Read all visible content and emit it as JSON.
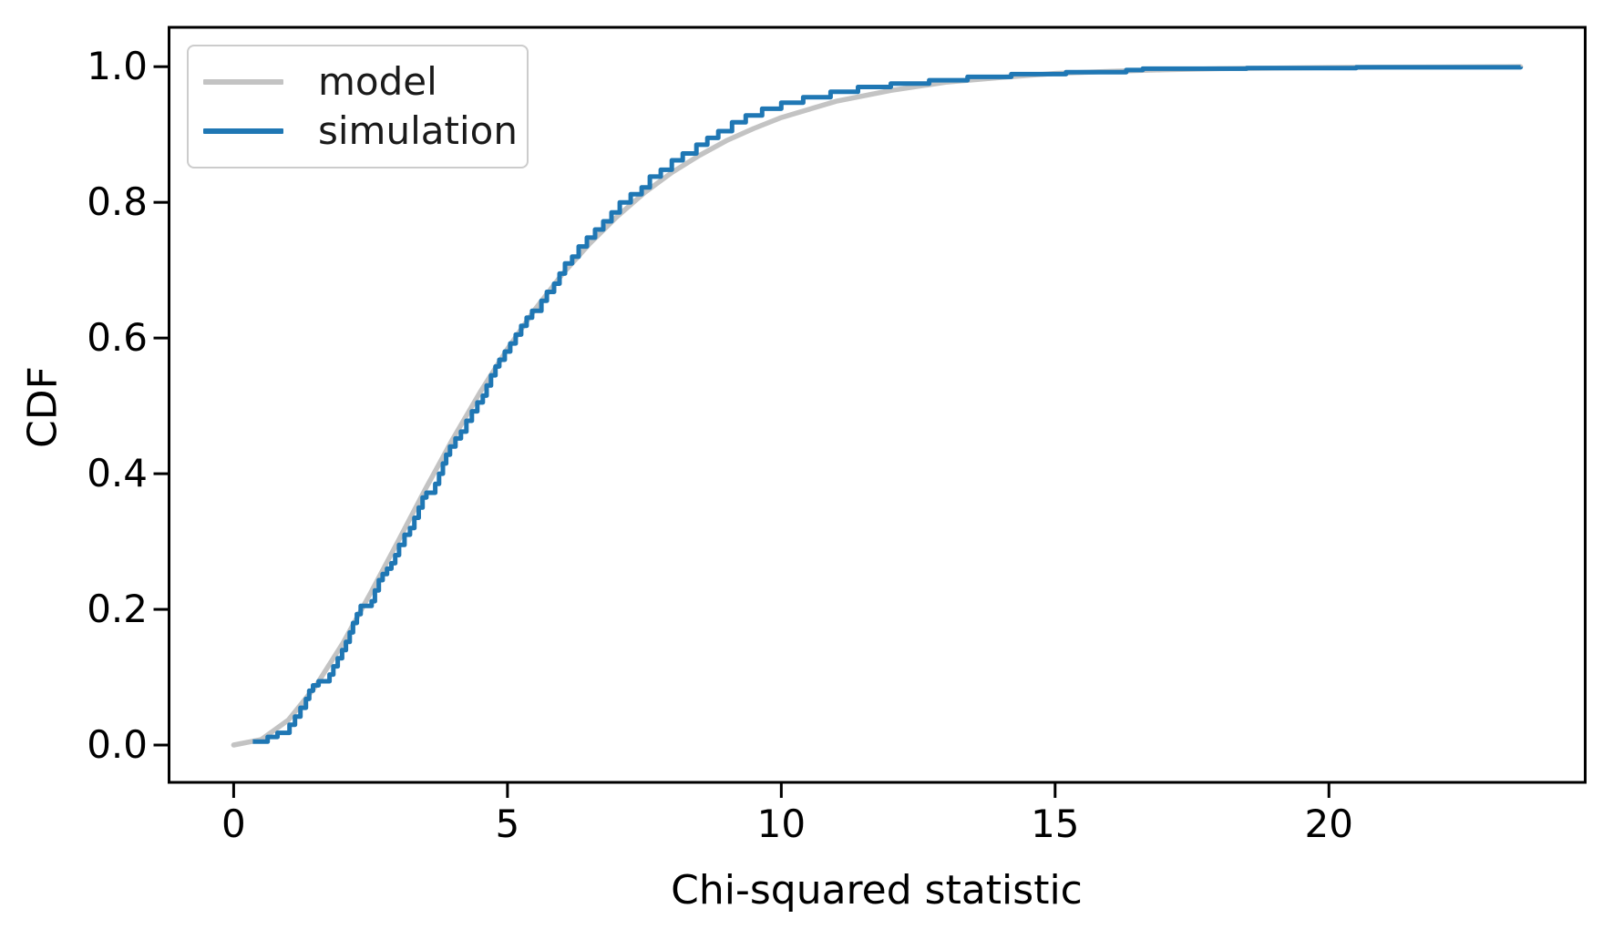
{
  "chart_data": {
    "type": "line",
    "title": "",
    "xlabel": "Chi-squared statistic",
    "ylabel": "CDF",
    "xlim": [
      -1.18,
      24.68
    ],
    "ylim": [
      -0.055,
      1.058
    ],
    "x_ticks": [
      0,
      5,
      10,
      15,
      20
    ],
    "x_tick_labels": [
      "0",
      "5",
      "10",
      "15",
      "20"
    ],
    "y_ticks": [
      0.0,
      0.2,
      0.4,
      0.6,
      0.8,
      1.0
    ],
    "y_tick_labels": [
      "0.0",
      "0.2",
      "0.4",
      "0.6",
      "0.8",
      "1.0"
    ],
    "grid": false,
    "legend": {
      "position": "upper-left",
      "entries": [
        {
          "label": "model",
          "color": "#c3c3c3"
        },
        {
          "label": "simulation",
          "color": "#1f77b4"
        }
      ]
    },
    "series": [
      {
        "name": "model",
        "style": "smooth",
        "color": "#c3c3c3",
        "width": 5.5,
        "x": [
          0,
          0.5,
          1,
          1.5,
          2,
          2.5,
          3,
          3.5,
          4,
          4.5,
          5,
          5.5,
          6,
          6.5,
          7,
          7.5,
          8,
          8.5,
          9,
          9.5,
          10,
          11,
          12,
          13,
          14,
          15,
          16,
          17,
          18,
          19,
          20,
          21,
          22,
          23,
          23.5
        ],
        "y": [
          0,
          0.008,
          0.037,
          0.087,
          0.151,
          0.224,
          0.3,
          0.377,
          0.451,
          0.52,
          0.584,
          0.642,
          0.694,
          0.739,
          0.779,
          0.814,
          0.844,
          0.869,
          0.891,
          0.909,
          0.925,
          0.949,
          0.965,
          0.977,
          0.984,
          0.99,
          0.993,
          0.9955,
          0.997,
          0.998,
          0.9988,
          0.9992,
          0.9995,
          0.9997,
          0.9998
        ]
      },
      {
        "name": "simulation",
        "style": "step",
        "color": "#1f77b4",
        "width": 5,
        "points": [
          [
            0.35,
            0.005
          ],
          [
            0.62,
            0.012
          ],
          [
            0.8,
            0.018
          ],
          [
            1.02,
            0.03
          ],
          [
            1.12,
            0.042
          ],
          [
            1.22,
            0.055
          ],
          [
            1.32,
            0.068
          ],
          [
            1.38,
            0.08
          ],
          [
            1.45,
            0.088
          ],
          [
            1.55,
            0.094
          ],
          [
            1.75,
            0.104
          ],
          [
            1.82,
            0.116
          ],
          [
            1.9,
            0.128
          ],
          [
            1.98,
            0.14
          ],
          [
            2.05,
            0.152
          ],
          [
            2.12,
            0.166
          ],
          [
            2.18,
            0.18
          ],
          [
            2.25,
            0.193
          ],
          [
            2.32,
            0.205
          ],
          [
            2.52,
            0.212
          ],
          [
            2.58,
            0.228
          ],
          [
            2.65,
            0.243
          ],
          [
            2.72,
            0.252
          ],
          [
            2.8,
            0.26
          ],
          [
            2.88,
            0.268
          ],
          [
            2.95,
            0.28
          ],
          [
            3.02,
            0.295
          ],
          [
            3.12,
            0.31
          ],
          [
            3.22,
            0.32
          ],
          [
            3.3,
            0.335
          ],
          [
            3.38,
            0.35
          ],
          [
            3.45,
            0.365
          ],
          [
            3.52,
            0.372
          ],
          [
            3.68,
            0.385
          ],
          [
            3.75,
            0.4
          ],
          [
            3.82,
            0.415
          ],
          [
            3.88,
            0.428
          ],
          [
            3.95,
            0.44
          ],
          [
            4.05,
            0.452
          ],
          [
            4.15,
            0.462
          ],
          [
            4.25,
            0.478
          ],
          [
            4.35,
            0.492
          ],
          [
            4.45,
            0.505
          ],
          [
            4.55,
            0.515
          ],
          [
            4.62,
            0.53
          ],
          [
            4.7,
            0.545
          ],
          [
            4.78,
            0.558
          ],
          [
            4.85,
            0.568
          ],
          [
            4.95,
            0.58
          ],
          [
            5.05,
            0.592
          ],
          [
            5.15,
            0.605
          ],
          [
            5.25,
            0.618
          ],
          [
            5.35,
            0.63
          ],
          [
            5.45,
            0.64
          ],
          [
            5.62,
            0.655
          ],
          [
            5.72,
            0.668
          ],
          [
            5.85,
            0.68
          ],
          [
            5.95,
            0.695
          ],
          [
            6.05,
            0.71
          ],
          [
            6.18,
            0.72
          ],
          [
            6.3,
            0.735
          ],
          [
            6.45,
            0.748
          ],
          [
            6.6,
            0.76
          ],
          [
            6.75,
            0.772
          ],
          [
            6.9,
            0.785
          ],
          [
            7.05,
            0.8
          ],
          [
            7.25,
            0.812
          ],
          [
            7.45,
            0.822
          ],
          [
            7.6,
            0.838
          ],
          [
            7.8,
            0.848
          ],
          [
            8.0,
            0.862
          ],
          [
            8.2,
            0.872
          ],
          [
            8.45,
            0.885
          ],
          [
            8.65,
            0.895
          ],
          [
            8.85,
            0.905
          ],
          [
            9.1,
            0.918
          ],
          [
            9.35,
            0.928
          ],
          [
            9.65,
            0.938
          ],
          [
            10.0,
            0.947
          ],
          [
            10.4,
            0.955
          ],
          [
            10.9,
            0.963
          ],
          [
            11.4,
            0.97
          ],
          [
            12.0,
            0.975
          ],
          [
            12.7,
            0.98
          ],
          [
            13.4,
            0.985
          ],
          [
            14.2,
            0.989
          ],
          [
            15.2,
            0.992
          ],
          [
            16.3,
            0.995
          ],
          [
            16.6,
            0.997
          ],
          [
            18.5,
            0.998
          ],
          [
            20.5,
            0.999
          ],
          [
            23.5,
            1.0
          ]
        ]
      }
    ],
    "axes": {
      "spine_color": "#000000",
      "tick_color": "#000000"
    }
  }
}
